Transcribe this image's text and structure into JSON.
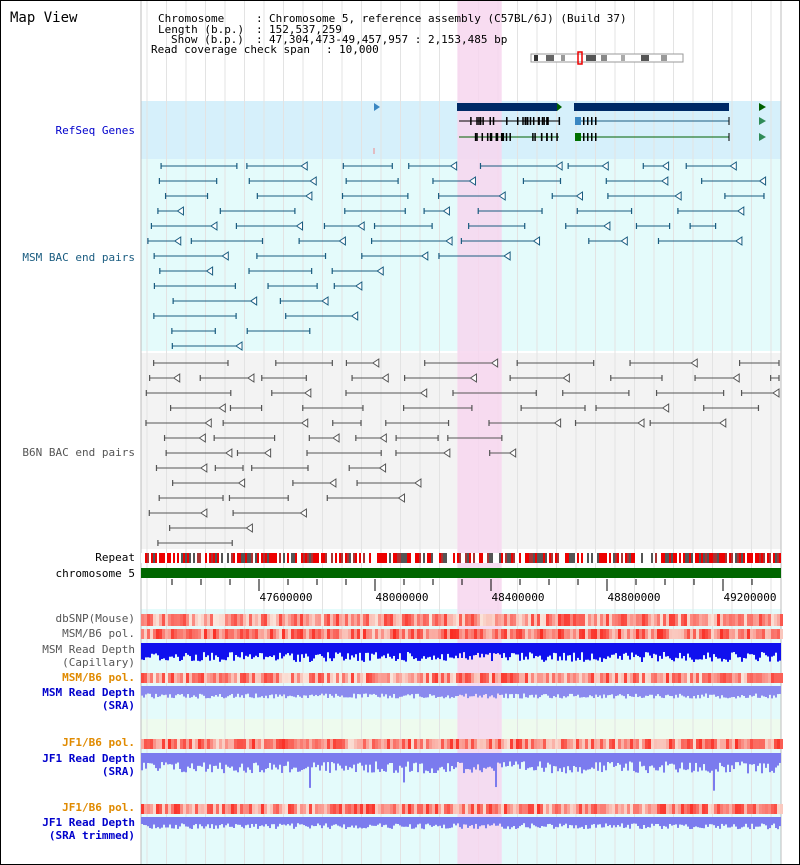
{
  "title": "Map View",
  "info": {
    "chromosome_label": "Chromosome",
    "chromosome_value": "Chromosome 5, reference assembly (C57BL/6J) (Build 37)",
    "length_label": "Length (b.p.)",
    "length_value": "152,537,259",
    "show_label": "Show (b.p.)",
    "show_value": "47,304,473-49,457,957 : 2,153,485 bp",
    "coverage_label": "Read coverage check span",
    "coverage_value": "10,000"
  },
  "tracks": {
    "refseq": {
      "label": "RefSeq Genes",
      "color": "#0000cc"
    },
    "msm_bac": {
      "label": "MSM BAC end pairs",
      "color": "#1a5c80"
    },
    "b6n_bac": {
      "label": "B6N BAC end pairs",
      "color": "#555555"
    },
    "repeat": {
      "label": "Repeat",
      "color": "#000000"
    },
    "chromosome": {
      "label": "chromosome 5",
      "color": "#000000"
    },
    "dbsnp": {
      "label": "dbSNP(Mouse)",
      "color": "#555555"
    },
    "msm_b6_pol1": {
      "label": "MSM/B6 pol.",
      "color": "#555555"
    },
    "msm_depth_cap": {
      "label_line1": "MSM Read Depth",
      "label_line2": "(Capillary)",
      "color": "#555555"
    },
    "msm_b6_pol2": {
      "label": "MSM/B6 pol.",
      "color": "#e08a00"
    },
    "msm_depth_sra": {
      "label_line1": "MSM Read Depth",
      "label_line2": "(SRA)",
      "color": "#0000cc"
    },
    "jf1_b6_pol1": {
      "label": "JF1/B6 pol.",
      "color": "#e08a00"
    },
    "jf1_depth_sra": {
      "label_line1": "JF1 Read Depth",
      "label_line2": "(SRA)",
      "color": "#0000cc"
    },
    "jf1_b6_pol2": {
      "label": "JF1/B6 pol.",
      "color": "#e08a00"
    },
    "jf1_depth_trim": {
      "label_line1": "JF1 Read Depth",
      "label_line2": "(SRA trimmed)",
      "color": "#0000cc"
    }
  },
  "axis": {
    "ticks": [
      "47600000",
      "48000000",
      "48400000",
      "48800000",
      "49200000"
    ],
    "tick_values": [
      47600000,
      48000000,
      48400000,
      48800000,
      49200000
    ]
  },
  "highlight": {
    "start": 48284000,
    "end": 48437000,
    "color": "#f7d6ef"
  },
  "colors": {
    "gene_dark": "#002a66",
    "gene_green": "#007000",
    "msm_pair": "#1a5c80",
    "b6n_pair": "#555555",
    "chromosome_bar": "#006600",
    "refseq_bg": "#d6f0fb",
    "track_bg": "#e4fbfb"
  }
}
